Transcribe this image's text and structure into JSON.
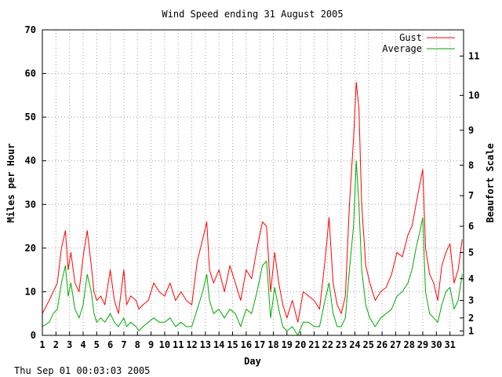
{
  "chart_data": {
    "type": "line",
    "title": "Wind Speed ending 31 August 2005",
    "xlabel": "Day",
    "ylabel": "Miles per Hour",
    "y2label": "Beaufort Scale",
    "xlim": [
      1,
      32
    ],
    "ylim": [
      0,
      70
    ],
    "grid": true,
    "legend_position": "top-right",
    "x_ticks": [
      "1",
      "2",
      "3",
      "4",
      "5",
      "6",
      "7",
      "8",
      "9",
      "10",
      "11",
      "12",
      "13",
      "14",
      "15",
      "16",
      "17",
      "18",
      "19",
      "20",
      "21",
      "22",
      "23",
      "24",
      "25",
      "26",
      "27",
      "28",
      "29",
      "30",
      "31"
    ],
    "y_ticks": [
      0,
      10,
      20,
      30,
      40,
      50,
      60,
      70
    ],
    "beaufort_ticks": [
      {
        "label": "1",
        "mph": 1
      },
      {
        "label": "2",
        "mph": 4
      },
      {
        "label": "3",
        "mph": 8
      },
      {
        "label": "4",
        "mph": 13
      },
      {
        "label": "5",
        "mph": 19
      },
      {
        "label": "6",
        "mph": 25
      },
      {
        "label": "7",
        "mph": 32
      },
      {
        "label": "8",
        "mph": 39
      },
      {
        "label": "9",
        "mph": 47
      },
      {
        "label": "10",
        "mph": 55
      },
      {
        "label": "11",
        "mph": 64
      }
    ],
    "series": [
      {
        "name": "Gust",
        "color": "#ff0000",
        "x": [
          1.0,
          1.5,
          1.8,
          2.1,
          2.4,
          2.7,
          2.9,
          3.1,
          3.4,
          3.7,
          4.0,
          4.3,
          4.6,
          4.8,
          5.0,
          5.3,
          5.6,
          6.0,
          6.3,
          6.6,
          7.0,
          7.2,
          7.5,
          7.9,
          8.1,
          8.4,
          8.8,
          9.2,
          9.6,
          10.0,
          10.4,
          10.8,
          11.2,
          11.6,
          12.0,
          12.4,
          12.8,
          13.1,
          13.3,
          13.6,
          14.0,
          14.4,
          14.8,
          15.2,
          15.6,
          16.0,
          16.4,
          16.8,
          17.2,
          17.5,
          17.8,
          18.1,
          18.4,
          18.7,
          19.0,
          19.4,
          19.8,
          20.2,
          20.6,
          21.0,
          21.4,
          21.8,
          22.1,
          22.4,
          22.7,
          23.0,
          23.3,
          23.6,
          23.9,
          24.1,
          24.3,
          24.5,
          24.8,
          25.1,
          25.5,
          25.9,
          26.3,
          26.7,
          27.1,
          27.5,
          27.9,
          28.2,
          28.5,
          28.8,
          29.0,
          29.2,
          29.5,
          29.8,
          30.1,
          30.4,
          30.7,
          31.0,
          31.3,
          31.6,
          31.9
        ],
        "values": [
          5,
          8,
          10,
          12,
          20,
          24,
          15,
          19,
          12,
          10,
          18,
          24,
          16,
          10,
          8,
          9,
          7,
          15,
          8,
          5,
          15,
          7,
          9,
          8,
          6,
          7,
          8,
          12,
          10,
          9,
          12,
          8,
          10,
          8,
          7,
          17,
          22,
          26,
          15,
          12,
          15,
          10,
          16,
          12,
          8,
          15,
          13,
          20,
          26,
          25,
          10,
          19,
          12,
          7,
          4,
          8,
          3,
          10,
          9,
          8,
          6,
          17,
          27,
          12,
          7,
          5,
          9,
          30,
          45,
          58,
          52,
          30,
          16,
          12,
          8,
          10,
          11,
          14,
          19,
          18,
          23,
          25,
          30,
          35,
          38,
          20,
          14,
          12,
          8,
          16,
          19,
          21,
          12,
          15,
          22
        ]
      },
      {
        "name": "Average",
        "color": "#00aa00",
        "x": [
          1.0,
          1.5,
          1.8,
          2.1,
          2.4,
          2.7,
          2.9,
          3.1,
          3.4,
          3.7,
          4.0,
          4.3,
          4.6,
          4.8,
          5.0,
          5.3,
          5.6,
          6.0,
          6.3,
          6.6,
          7.0,
          7.2,
          7.5,
          7.9,
          8.1,
          8.4,
          8.8,
          9.2,
          9.6,
          10.0,
          10.4,
          10.8,
          11.2,
          11.6,
          12.0,
          12.4,
          12.8,
          13.1,
          13.3,
          13.6,
          14.0,
          14.4,
          14.8,
          15.2,
          15.6,
          16.0,
          16.4,
          16.8,
          17.2,
          17.5,
          17.8,
          18.1,
          18.4,
          18.7,
          19.0,
          19.4,
          19.8,
          20.2,
          20.6,
          21.0,
          21.4,
          21.8,
          22.1,
          22.4,
          22.7,
          23.0,
          23.3,
          23.6,
          23.9,
          24.1,
          24.3,
          24.5,
          24.8,
          25.1,
          25.5,
          25.9,
          26.3,
          26.7,
          27.1,
          27.5,
          27.9,
          28.2,
          28.5,
          28.8,
          29.0,
          29.2,
          29.5,
          29.8,
          30.1,
          30.4,
          30.7,
          31.0,
          31.3,
          31.6,
          31.9
        ],
        "values": [
          2,
          3,
          5,
          6,
          12,
          16,
          9,
          12,
          6,
          4,
          7,
          14,
          10,
          5,
          3,
          4,
          3,
          5,
          3,
          2,
          4,
          2,
          3,
          2,
          1,
          2,
          3,
          4,
          3,
          3,
          4,
          2,
          3,
          2,
          2,
          6,
          10,
          14,
          8,
          5,
          6,
          4,
          6,
          5,
          2,
          6,
          5,
          10,
          16,
          17,
          4,
          11,
          6,
          2,
          1,
          2,
          0,
          3,
          3,
          2,
          2,
          8,
          12,
          5,
          2,
          2,
          4,
          15,
          25,
          40,
          30,
          15,
          7,
          4,
          2,
          4,
          5,
          6,
          9,
          10,
          12,
          15,
          20,
          24,
          27,
          10,
          5,
          4,
          3,
          7,
          10,
          11,
          6,
          8,
          14
        ]
      }
    ]
  },
  "timestamp": "Thu Sep 01 00:03:03 2005"
}
